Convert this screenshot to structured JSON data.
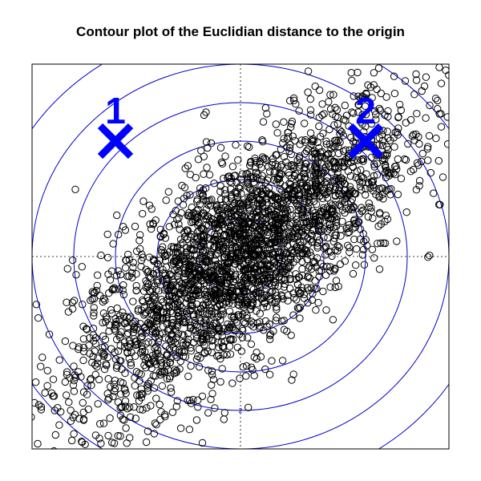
{
  "chart_data": {
    "type": "scatter",
    "title": "Contour plot of the Euclidian distance to the origin",
    "xlabel": "",
    "ylabel": "",
    "xlim": [
      -2.5,
      2.5
    ],
    "ylim": [
      -2.5,
      2.5
    ],
    "reference_lines": {
      "x": 0,
      "y": 0,
      "style": "dotted"
    },
    "contours": {
      "metric": "euclidean distance to origin",
      "levels": [
        0.5,
        1,
        1.5,
        2,
        2.5,
        3
      ],
      "color": "#0000cc",
      "labels": [
        "2"
      ]
    },
    "scatter": {
      "n": 3000,
      "mean": [
        0,
        0
      ],
      "sd": [
        1,
        1
      ],
      "correlation": 0.75,
      "marker": "open-circle",
      "color": "#000000"
    },
    "markers": [
      {
        "label": "1",
        "x": -1.5,
        "y": 1.5,
        "symbol": "x",
        "color": "#0000ff"
      },
      {
        "label": "2",
        "x": 1.5,
        "y": 1.5,
        "symbol": "x",
        "color": "#0000ff"
      }
    ]
  }
}
